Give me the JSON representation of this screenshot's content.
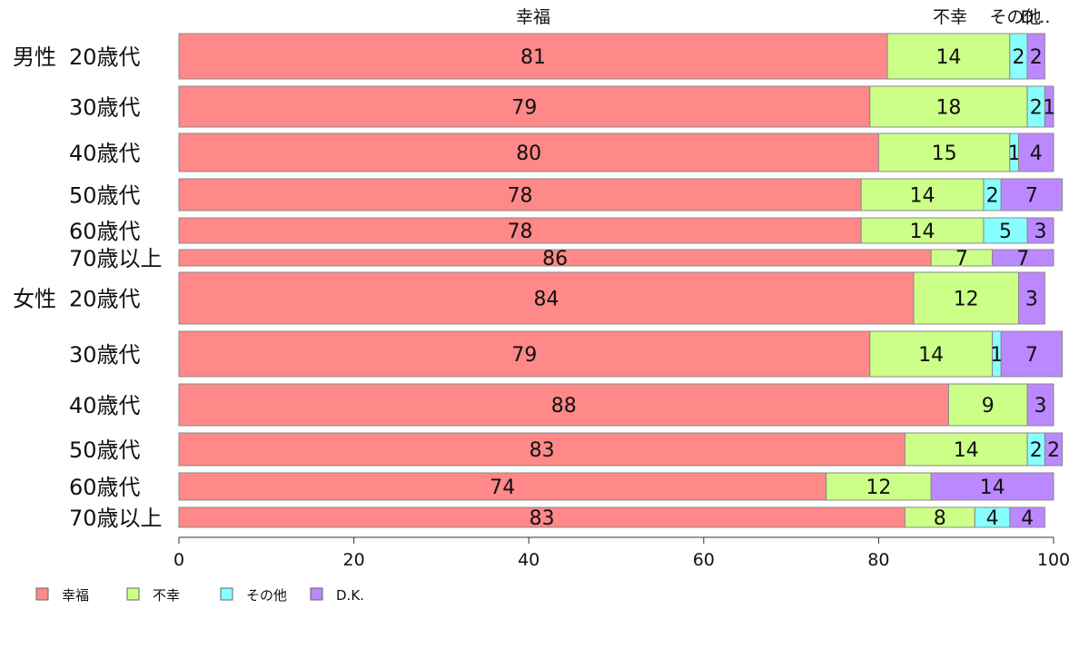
{
  "chart_data": {
    "type": "bar",
    "orientation": "horizontal",
    "stacked": true,
    "column_headers": [
      "幸福",
      "不幸",
      "その他",
      "D..."
    ],
    "row_labels": [
      {
        "group": "男性",
        "age": "20歳代"
      },
      {
        "group": "",
        "age": "30歳代"
      },
      {
        "group": "",
        "age": "40歳代"
      },
      {
        "group": "",
        "age": "50歳代"
      },
      {
        "group": "",
        "age": "60歳代"
      },
      {
        "group": "",
        "age": "70歳以上"
      },
      {
        "group": "女性",
        "age": "20歳代"
      },
      {
        "group": "",
        "age": "30歳代"
      },
      {
        "group": "",
        "age": "40歳代"
      },
      {
        "group": "",
        "age": "50歳代"
      },
      {
        "group": "",
        "age": "60歳代"
      },
      {
        "group": "",
        "age": "70歳以上"
      }
    ],
    "series": [
      {
        "name": "幸福",
        "color": "#ff8888",
        "values": [
          81,
          79,
          80,
          78,
          78,
          86,
          84,
          79,
          88,
          83,
          74,
          83
        ]
      },
      {
        "name": "不幸",
        "color": "#ccff88",
        "values": [
          14,
          18,
          15,
          14,
          14,
          7,
          12,
          14,
          9,
          14,
          12,
          8
        ]
      },
      {
        "name": "その他",
        "color": "#88ffff",
        "values": [
          2,
          2,
          1,
          2,
          5,
          0,
          0,
          1,
          0,
          2,
          0,
          4
        ]
      },
      {
        "name": "D.K.",
        "color": "#bb88ff",
        "values": [
          2,
          1,
          4,
          7,
          3,
          7,
          3,
          7,
          3,
          2,
          14,
          4
        ]
      }
    ],
    "xlim": [
      0,
      100
    ],
    "xticks": [
      0,
      20,
      40,
      60,
      80,
      100
    ],
    "legend_position": "bottom-left"
  }
}
